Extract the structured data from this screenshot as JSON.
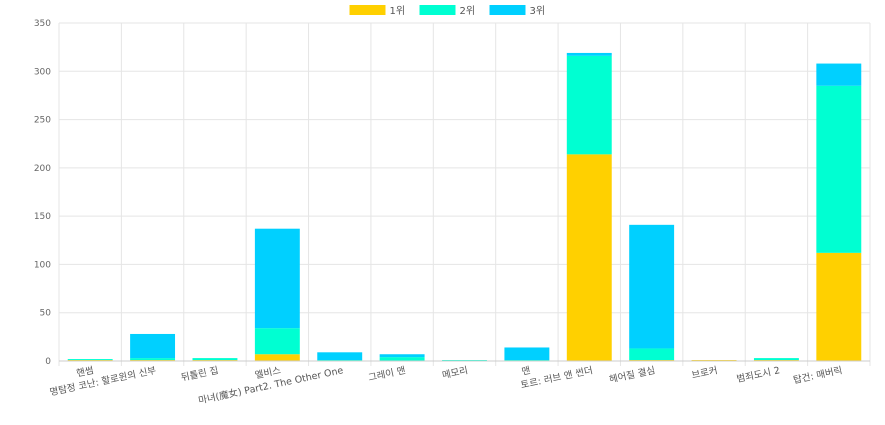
{
  "chart_data": {
    "type": "bar",
    "stacked": true,
    "categories": [
      "핸썸",
      "명탐정 코난: 할로윈의 신부",
      "뒤틀린 집",
      "엘비스",
      "마녀(魔女) Part2. The Other One",
      "그레이 맨",
      "메모리",
      "맨",
      "토르: 러브 앤 썬더",
      "헤어질 결심",
      "브로커",
      "범죄도시 2",
      "탑건: 매버릭"
    ],
    "series": [
      {
        "name": "1위",
        "color": "#ffd000",
        "values": [
          1,
          1,
          1,
          7,
          0,
          0,
          0,
          0,
          214,
          1,
          1,
          1,
          112
        ]
      },
      {
        "name": "2위",
        "color": "#00ffd2",
        "values": [
          1,
          2,
          2,
          27,
          1,
          4,
          1,
          1,
          102,
          12,
          0,
          2,
          173
        ]
      },
      {
        "name": "3위",
        "color": "#00d0ff",
        "values": [
          0,
          25,
          0,
          103,
          8,
          3,
          0,
          13,
          3,
          128,
          0,
          0,
          23
        ]
      }
    ],
    "ylim": [
      0,
      350
    ],
    "yticks": [
      0,
      50,
      100,
      150,
      200,
      250,
      300,
      350
    ],
    "grid": true,
    "legend": "top-center",
    "title": "",
    "xlabel": "",
    "ylabel": ""
  }
}
